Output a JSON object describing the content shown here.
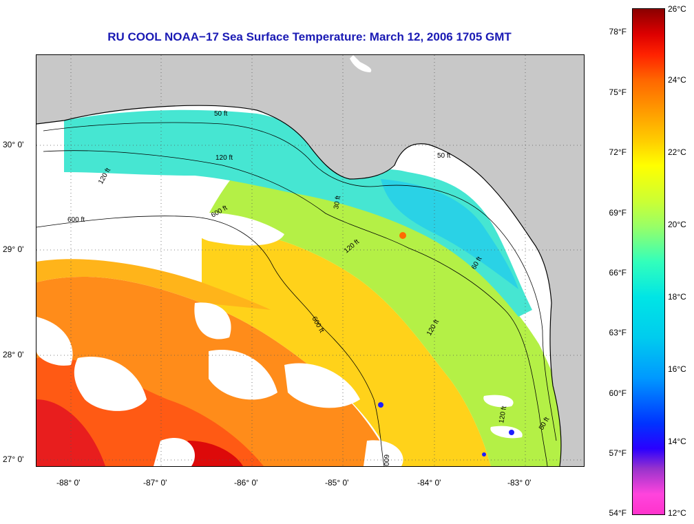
{
  "title": "RU COOL  NOAA−17  Sea Surface Temperature:  March 12, 2006 1705 GMT",
  "longitude_labels": [
    "-88° 0'",
    "-87° 0'",
    "-86° 0'",
    "-85° 0'",
    "-84° 0'",
    "-83° 0'"
  ],
  "latitude_labels": [
    "30° 0'",
    "29° 0'",
    "28° 0'",
    "27° 0'"
  ],
  "contour_labels": [
    "50 ft",
    "120 ft",
    "600 ft",
    "30 ft",
    "60 ft",
    "50 ft",
    "120 ft",
    "600 ft",
    "120 ft",
    "120 ft",
    "600 ft",
    "50 ft",
    "120 ft",
    "600 ft"
  ],
  "colorbar": {
    "fahrenheit_labels": [
      "78°F",
      "75°F",
      "72°F",
      "69°F",
      "66°F",
      "63°F",
      "60°F",
      "57°F",
      "54°F"
    ],
    "celsius_labels": [
      "26°C",
      "24°C",
      "22°C",
      "20°C",
      "18°C",
      "16°C",
      "14°C",
      "12°C"
    ]
  },
  "colors": {
    "title": "#1a1ab4",
    "land": "#c8c8c8",
    "cloud": "#ffffff"
  }
}
